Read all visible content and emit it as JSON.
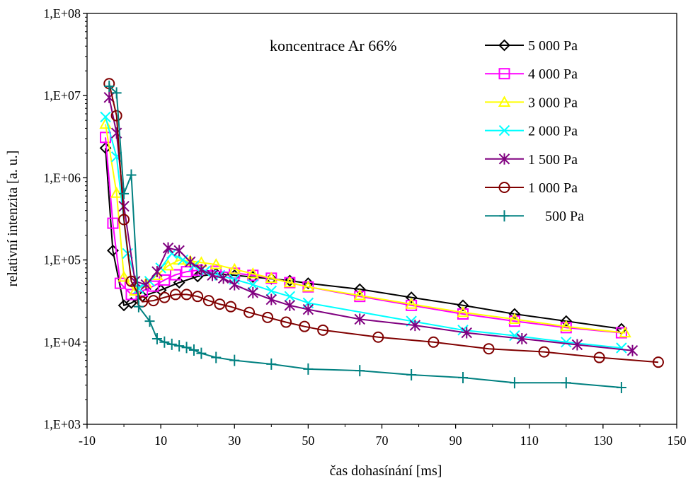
{
  "chart_data": {
    "type": "line",
    "title": "",
    "annotation": "koncentrace Ar 66%",
    "xlabel": "čas dohasínání [ms]",
    "ylabel": "relativní intenzita [a. u.]",
    "xlim": [
      -10,
      150
    ],
    "ylim": [
      1000,
      100000000
    ],
    "yscale": "log",
    "xticks": [
      -10,
      10,
      30,
      50,
      70,
      90,
      110,
      130,
      150
    ],
    "xtick_labels": [
      "-10",
      "10",
      "30",
      "50",
      "70",
      "90",
      "110",
      "130",
      "150"
    ],
    "yticks": [
      1000,
      10000,
      100000,
      1000000,
      10000000,
      100000000
    ],
    "ytick_labels": [
      "1,E+03",
      "1,E+04",
      "1,E+05",
      "1,E+06",
      "1,E+07",
      "1,E+08"
    ],
    "grid": false,
    "legend_position": "top-right",
    "series": [
      {
        "name": "5 000 Pa",
        "color": "#000000",
        "marker": "diamond",
        "x": [
          -5,
          -3,
          0,
          2,
          5,
          10,
          15,
          20,
          25,
          30,
          35,
          40,
          45,
          50,
          64,
          78,
          92,
          106,
          120,
          135
        ],
        "y": [
          2300000,
          130000,
          28000,
          30000,
          36000,
          43000,
          53000,
          63000,
          68000,
          65000,
          62000,
          59000,
          56000,
          52000,
          44000,
          35000,
          28000,
          22000,
          18000,
          14500
        ]
      },
      {
        "name": "4 000 Pa",
        "color": "#ff00ff",
        "marker": "square",
        "x": [
          -5,
          -3,
          -1,
          2,
          5,
          8,
          11,
          14,
          17,
          20,
          25,
          30,
          35,
          40,
          45,
          50,
          64,
          78,
          92,
          106,
          120,
          135
        ],
        "y": [
          3100000,
          280000,
          52000,
          38000,
          42000,
          48000,
          57000,
          66000,
          72000,
          75000,
          73000,
          69000,
          65000,
          60000,
          53000,
          47000,
          36000,
          28000,
          22000,
          18000,
          15000,
          13000
        ]
      },
      {
        "name": "3 000 Pa",
        "color": "#ffff00",
        "marker": "triangle",
        "x": [
          -5,
          -2,
          0,
          3,
          6,
          9,
          12,
          15,
          18,
          21,
          25,
          30,
          35,
          40,
          45,
          50,
          64,
          78,
          92,
          106,
          120,
          136
        ],
        "y": [
          4500000,
          650000,
          62000,
          42000,
          52000,
          65000,
          85000,
          100000,
          97000,
          93000,
          88000,
          77000,
          68000,
          60000,
          53000,
          47000,
          37000,
          29000,
          23000,
          19000,
          15500,
          13000
        ]
      },
      {
        "name": "2 000 Pa",
        "color": "#00ffff",
        "marker": "x",
        "x": [
          -5,
          -2,
          1,
          4,
          7,
          10,
          13,
          16,
          19,
          22,
          26,
          30,
          35,
          40,
          45,
          50,
          78,
          92,
          106,
          120,
          135
        ],
        "y": [
          5500000,
          1800000,
          120000,
          45000,
          55000,
          80000,
          120000,
          100000,
          85000,
          73000,
          65000,
          58000,
          50000,
          42000,
          36000,
          30000,
          18000,
          14000,
          12000,
          10000,
          8500
        ]
      },
      {
        "name": "1 500 Pa",
        "color": "#800080",
        "marker": "star",
        "x": [
          -4,
          -2,
          0,
          3,
          6,
          9,
          12,
          15,
          18,
          21,
          24,
          27,
          30,
          35,
          40,
          45,
          50,
          64,
          79,
          93,
          108,
          123,
          138
        ],
        "y": [
          9500000,
          3500000,
          450000,
          55000,
          50000,
          72000,
          140000,
          130000,
          95000,
          76000,
          65000,
          60000,
          50000,
          40000,
          33000,
          28000,
          25000,
          19000,
          16000,
          13000,
          11000,
          9300,
          7900
        ]
      },
      {
        "name": "1 000 Pa",
        "color": "#800000",
        "marker": "circle",
        "x": [
          -4,
          -2,
          0,
          2,
          5,
          8,
          11,
          14,
          17,
          20,
          23,
          26,
          29,
          34,
          39,
          44,
          49,
          54,
          69,
          84,
          99,
          114,
          129,
          145
        ],
        "y": [
          14000000,
          5700000,
          310000,
          55000,
          31000,
          32000,
          35000,
          38000,
          38000,
          36000,
          32000,
          29000,
          27000,
          23000,
          20000,
          17500,
          15500,
          14000,
          11500,
          10000,
          8300,
          7600,
          6500,
          5700
        ]
      },
      {
        "name": "500 Pa",
        "color": "#008080",
        "marker": "plus",
        "x": [
          -4,
          -2,
          0,
          2,
          4,
          7,
          9,
          11,
          13,
          15,
          17,
          19,
          21,
          25,
          30,
          40,
          50,
          64,
          78,
          92,
          106,
          120,
          135
        ],
        "y": [
          13000000,
          10800000,
          640000,
          1080000,
          27000,
          18000,
          11000,
          10000,
          9400,
          9000,
          8600,
          8000,
          7300,
          6500,
          6000,
          5400,
          4700,
          4500,
          4000,
          3700,
          3200,
          3200,
          2800
        ]
      }
    ]
  }
}
